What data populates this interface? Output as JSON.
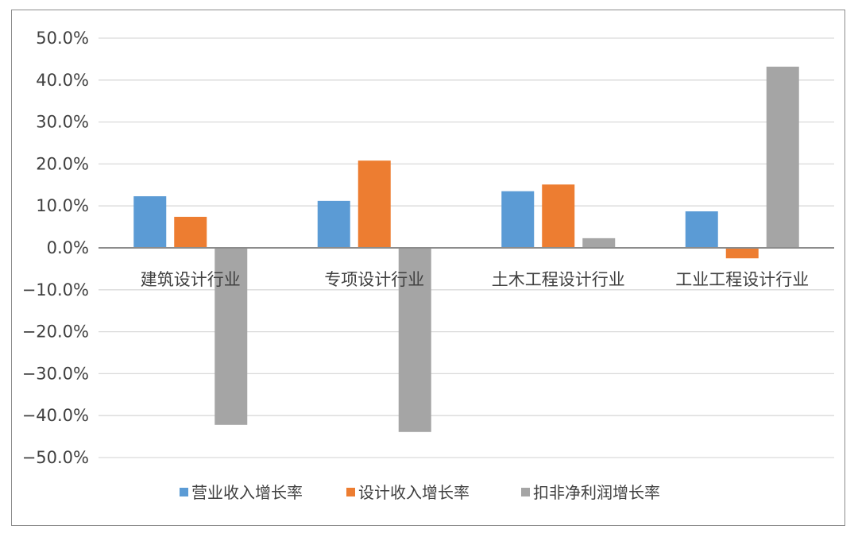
{
  "chart_data": {
    "type": "bar",
    "categories": [
      "建筑设计行业",
      "专项设计行业",
      "土木工程设计行业",
      "工业工程设计行业"
    ],
    "series": [
      {
        "name": "营业收入增长率",
        "color": "#5B9BD5",
        "values": [
          12.3,
          11.2,
          13.5,
          8.7
        ]
      },
      {
        "name": "设计收入增长率",
        "color": "#ED7D31",
        "values": [
          7.4,
          20.8,
          15.1,
          -2.5
        ]
      },
      {
        "name": "扣非净利润增长率",
        "color": "#A5A5A5",
        "values": [
          -42.2,
          -43.9,
          2.3,
          43.2
        ]
      }
    ],
    "ylim": [
      -50,
      50
    ],
    "yticks": [
      50,
      40,
      30,
      20,
      10,
      0,
      -10,
      -20,
      -30,
      -40,
      -50
    ],
    "ytick_labels": [
      "50.0%",
      "40.0%",
      "30.0%",
      "20.0%",
      "10.0%",
      "0.0%",
      "−10.0%",
      "−20.0%",
      "−30.0%",
      "−40.0%",
      "−50.0%"
    ],
    "grid": true,
    "legend_position": "bottom"
  }
}
